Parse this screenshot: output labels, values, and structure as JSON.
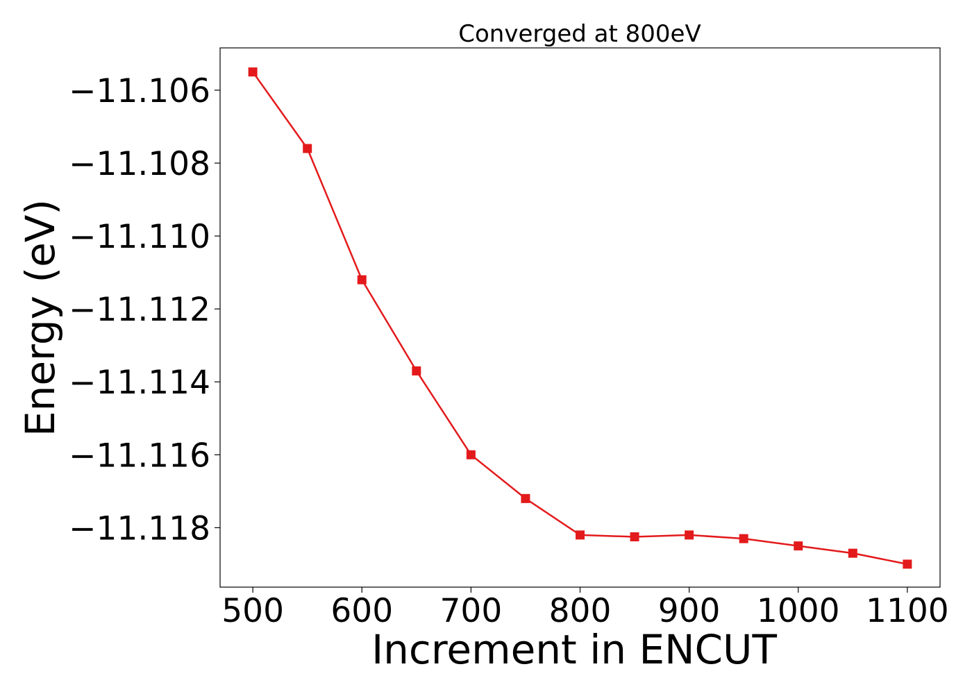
{
  "chart_data": {
    "type": "line",
    "title": "Converged at 800eV",
    "xlabel": "Increment in ENCUT",
    "ylabel": "Energy (eV)",
    "x": [
      500,
      550,
      600,
      650,
      700,
      750,
      800,
      850,
      900,
      950,
      1000,
      1050,
      1100
    ],
    "series": [
      {
        "values": [
          -11.1055,
          -11.1076,
          -11.1112,
          -11.1137,
          -11.116,
          -11.1172,
          -11.1182,
          -11.11825,
          -11.1182,
          -11.1183,
          -11.1185,
          -11.1187,
          -11.119
        ],
        "color": "#e31a1c",
        "marker": "square"
      }
    ],
    "xticks": [
      500,
      600,
      700,
      800,
      900,
      1000,
      1100
    ],
    "xtick_labels": [
      "500",
      "600",
      "700",
      "800",
      "900",
      "1000",
      "1100"
    ],
    "yticks": [
      -11.106,
      -11.108,
      -11.11,
      -11.112,
      -11.114,
      -11.116,
      -11.118
    ],
    "ytick_labels": [
      "−11.106",
      "−11.108",
      "−11.110",
      "−11.112",
      "−11.114",
      "−11.116",
      "−11.118"
    ],
    "xlim": [
      470,
      1130
    ],
    "ylim": [
      -11.11963,
      -11.10484
    ],
    "grid": false,
    "legend": false
  }
}
